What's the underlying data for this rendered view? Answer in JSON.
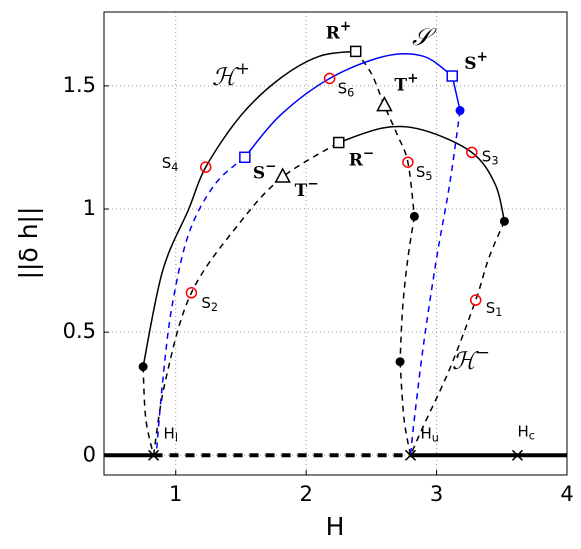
{
  "chart_data": {
    "type": "line",
    "xlabel": "H",
    "ylabel": "||δ h||",
    "xlim": [
      0.45,
      4
    ],
    "ylim": [
      -0.08,
      1.8
    ],
    "xticks": [
      1,
      2,
      3,
      4
    ],
    "yticks": [
      0,
      0.5,
      1,
      1.5
    ],
    "grid": true,
    "series": [
      {
        "color": "#000000",
        "dash": false,
        "width": 1.5,
        "x": [
          0.75,
          0.9,
          1.1,
          1.23,
          1.5,
          1.8,
          2.1,
          2.38
        ],
        "y": [
          0.36,
          0.75,
          1.0,
          1.17,
          1.38,
          1.53,
          1.62,
          1.64
        ]
      },
      {
        "color": "#000000",
        "dash": true,
        "width": 1.5,
        "x": [
          2.38,
          2.5,
          2.6,
          2.7,
          2.78,
          2.83
        ],
        "y": [
          1.64,
          1.55,
          1.42,
          1.3,
          1.19,
          0.97
        ]
      },
      {
        "color": "#000000",
        "dash": true,
        "width": 1.5,
        "x": [
          0.75,
          0.77,
          0.83
        ],
        "y": [
          0.36,
          0.15,
          0
        ]
      },
      {
        "color": "#000000",
        "dash": true,
        "width": 1.5,
        "x": [
          0.83,
          0.92,
          1.12,
          1.5,
          1.82,
          2.25
        ],
        "y": [
          0,
          0.3,
          0.66,
          0.95,
          1.13,
          1.27
        ]
      },
      {
        "color": "#000000",
        "dash": false,
        "width": 1.5,
        "x": [
          2.25,
          2.6,
          2.9,
          3.27,
          3.45,
          3.52
        ],
        "y": [
          1.27,
          1.33,
          1.32,
          1.23,
          1.1,
          0.95
        ]
      },
      {
        "color": "#000000",
        "dash": true,
        "width": 1.5,
        "x": [
          3.52,
          3.4,
          3.3,
          3.1,
          2.9,
          2.8
        ],
        "y": [
          0.95,
          0.8,
          0.63,
          0.35,
          0.12,
          0
        ]
      },
      {
        "color": "#000000",
        "dash": true,
        "width": 1.5,
        "x": [
          2.83,
          2.78,
          2.74,
          2.72
        ],
        "y": [
          0.97,
          0.8,
          0.6,
          0.38
        ]
      },
      {
        "color": "#000000",
        "dash": true,
        "width": 1.5,
        "x": [
          2.72,
          2.75,
          2.8
        ],
        "y": [
          0.38,
          0.15,
          0
        ]
      },
      {
        "color": "#0000ff",
        "dash": false,
        "width": 1.5,
        "x": [
          1.53,
          1.8,
          2.18,
          2.6,
          2.9,
          3.12
        ],
        "y": [
          1.21,
          1.38,
          1.53,
          1.62,
          1.62,
          1.54
        ]
      },
      {
        "color": "#0000ff",
        "dash": false,
        "width": 1.5,
        "x": [
          3.12,
          3.18
        ],
        "y": [
          1.54,
          1.4
        ]
      },
      {
        "color": "#0000ff",
        "dash": true,
        "width": 1.5,
        "x": [
          1.53,
          1.3,
          1.1,
          0.97,
          0.9,
          0.85
        ],
        "y": [
          1.21,
          1.1,
          0.9,
          0.6,
          0.3,
          0
        ]
      },
      {
        "color": "#0000ff",
        "dash": true,
        "width": 1.5,
        "x": [
          3.18,
          3.1,
          3.0,
          2.9,
          2.83,
          2.8
        ],
        "y": [
          1.4,
          1.1,
          0.8,
          0.45,
          0.15,
          0
        ]
      },
      {
        "color": "#000000",
        "dash": false,
        "width": 4,
        "x": [
          0.45,
          0.83
        ],
        "y": [
          0,
          0
        ]
      },
      {
        "color": "#000000",
        "dash": true,
        "width": 4,
        "x": [
          0.83,
          2.8
        ],
        "y": [
          0,
          0
        ]
      },
      {
        "color": "#000000",
        "dash": false,
        "width": 4,
        "x": [
          2.8,
          4
        ],
        "y": [
          0,
          0
        ]
      }
    ],
    "markers": [
      {
        "shape": "circle",
        "color": "#ff0000",
        "x": 3.3,
        "y": 0.63,
        "text": "S",
        "sub": "1"
      },
      {
        "shape": "circle",
        "color": "#ff0000",
        "x": 1.12,
        "y": 0.66,
        "text": "S",
        "sub": "2"
      },
      {
        "shape": "circle",
        "color": "#ff0000",
        "x": 3.27,
        "y": 1.23,
        "text": "S",
        "sub": "3"
      },
      {
        "shape": "circle",
        "color": "#ff0000",
        "x": 1.23,
        "y": 1.17,
        "text": "S",
        "sub": "4"
      },
      {
        "shape": "circle",
        "color": "#ff0000",
        "x": 2.78,
        "y": 1.19,
        "text": "S",
        "sub": "5"
      },
      {
        "shape": "circle",
        "color": "#ff0000",
        "x": 2.18,
        "y": 1.53,
        "text": "S",
        "sub": "6"
      },
      {
        "shape": "square",
        "color": "#000000",
        "x": 2.38,
        "y": 1.64,
        "text": "R",
        "sup": "+"
      },
      {
        "shape": "square",
        "color": "#000000",
        "x": 2.25,
        "y": 1.27,
        "text": "R",
        "sup": "−"
      },
      {
        "shape": "square",
        "color": "#0000ff",
        "x": 1.53,
        "y": 1.21,
        "text": "S",
        "sup": "−"
      },
      {
        "shape": "square",
        "color": "#0000ff",
        "x": 3.12,
        "y": 1.54,
        "text": "S",
        "sup": "+"
      },
      {
        "shape": "triangle",
        "color": "#000000",
        "x": 2.6,
        "y": 1.42,
        "text": "T",
        "sup": "+"
      },
      {
        "shape": "triangle",
        "color": "#000000",
        "x": 1.82,
        "y": 1.13,
        "text": "T",
        "sup": "−"
      },
      {
        "shape": "dot",
        "color": "#000000",
        "x": 0.75,
        "y": 0.36
      },
      {
        "shape": "dot",
        "color": "#000000",
        "x": 2.83,
        "y": 0.97
      },
      {
        "shape": "dot",
        "color": "#000000",
        "x": 2.72,
        "y": 0.38
      },
      {
        "shape": "dot",
        "color": "#000000",
        "x": 3.52,
        "y": 0.95
      },
      {
        "shape": "dot",
        "color": "#0000ff",
        "x": 3.18,
        "y": 1.4
      },
      {
        "shape": "cross",
        "color": "#000000",
        "x": 0.83,
        "y": 0,
        "text": "H",
        "sub": "l"
      },
      {
        "shape": "cross",
        "color": "#000000",
        "x": 2.8,
        "y": 0,
        "text": "H",
        "sub": "u"
      },
      {
        "shape": "cross",
        "color": "#000000",
        "x": 3.62,
        "y": 0,
        "text": "H",
        "sub": "c"
      }
    ],
    "annotations": [
      {
        "text": "ℋ",
        "sup": "+",
        "color": "#000000"
      },
      {
        "text": "𝒮",
        "color": "#0000ff"
      },
      {
        "text": "ℋ",
        "sup": "−",
        "color": "#000000"
      }
    ]
  }
}
